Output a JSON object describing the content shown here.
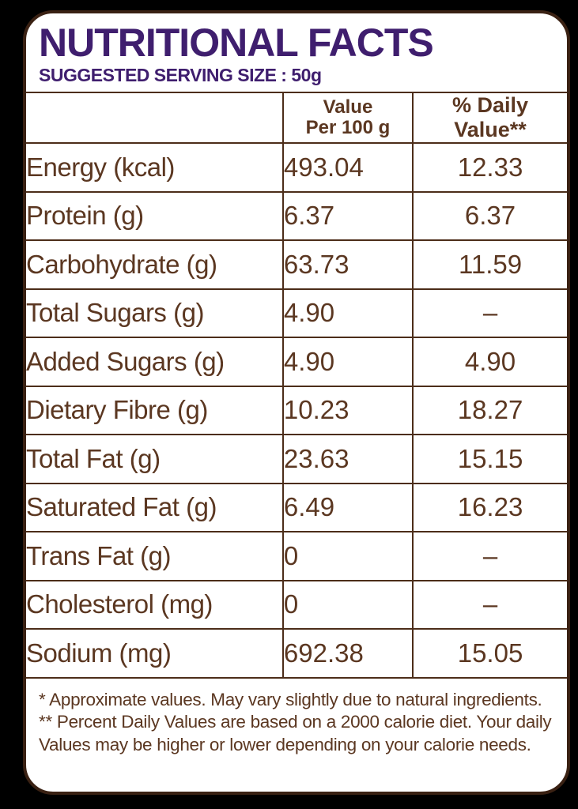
{
  "header": {
    "title": "NUTRITIONAL FACTS",
    "subtitle": "SUGGESTED SERVING SIZE : 50g"
  },
  "table": {
    "head": {
      "label_col": "",
      "value_line1": "Value",
      "value_line2": "Per 100 g",
      "daily": "% Daily Value**"
    },
    "rows": [
      {
        "label": "Energy (kcal)",
        "value": "493.04",
        "daily": "12.33"
      },
      {
        "label": "Protein (g)",
        "value": "6.37",
        "daily": "6.37"
      },
      {
        "label": "Carbohydrate (g)",
        "value": "63.73",
        "daily": "11.59"
      },
      {
        "label": "Total Sugars (g)",
        "value": "4.90",
        "daily": "–"
      },
      {
        "label": "Added Sugars (g)",
        "value": "4.90",
        "daily": "4.90"
      },
      {
        "label": "Dietary Fibre (g)",
        "value": "10.23",
        "daily": "18.27"
      },
      {
        "label": "Total Fat (g)",
        "value": "23.63",
        "daily": "15.15"
      },
      {
        "label": "Saturated Fat (g)",
        "value": "6.49",
        "daily": "16.23"
      },
      {
        "label": "Trans Fat (g)",
        "value": "0",
        "daily": "–"
      },
      {
        "label": "Cholesterol (mg)",
        "value": "0",
        "daily": "–"
      },
      {
        "label": "Sodium (mg)",
        "value": "692.38",
        "daily": "15.05"
      }
    ]
  },
  "footnotes": {
    "line1": "* Approximate values. May vary slightly due to natural ingredients.",
    "line2": "** Percent Daily Values are based on a 2000 calorie diet. Your daily Values may be higher or lower depending on your calorie needs."
  },
  "colors": {
    "title_purple": "#3f1e6e",
    "text_brown": "#5b3721",
    "grid_brown": "#4c2d19",
    "card_border_brown": "#3a2113",
    "background": "#000000",
    "card_background": "#ffffff"
  }
}
